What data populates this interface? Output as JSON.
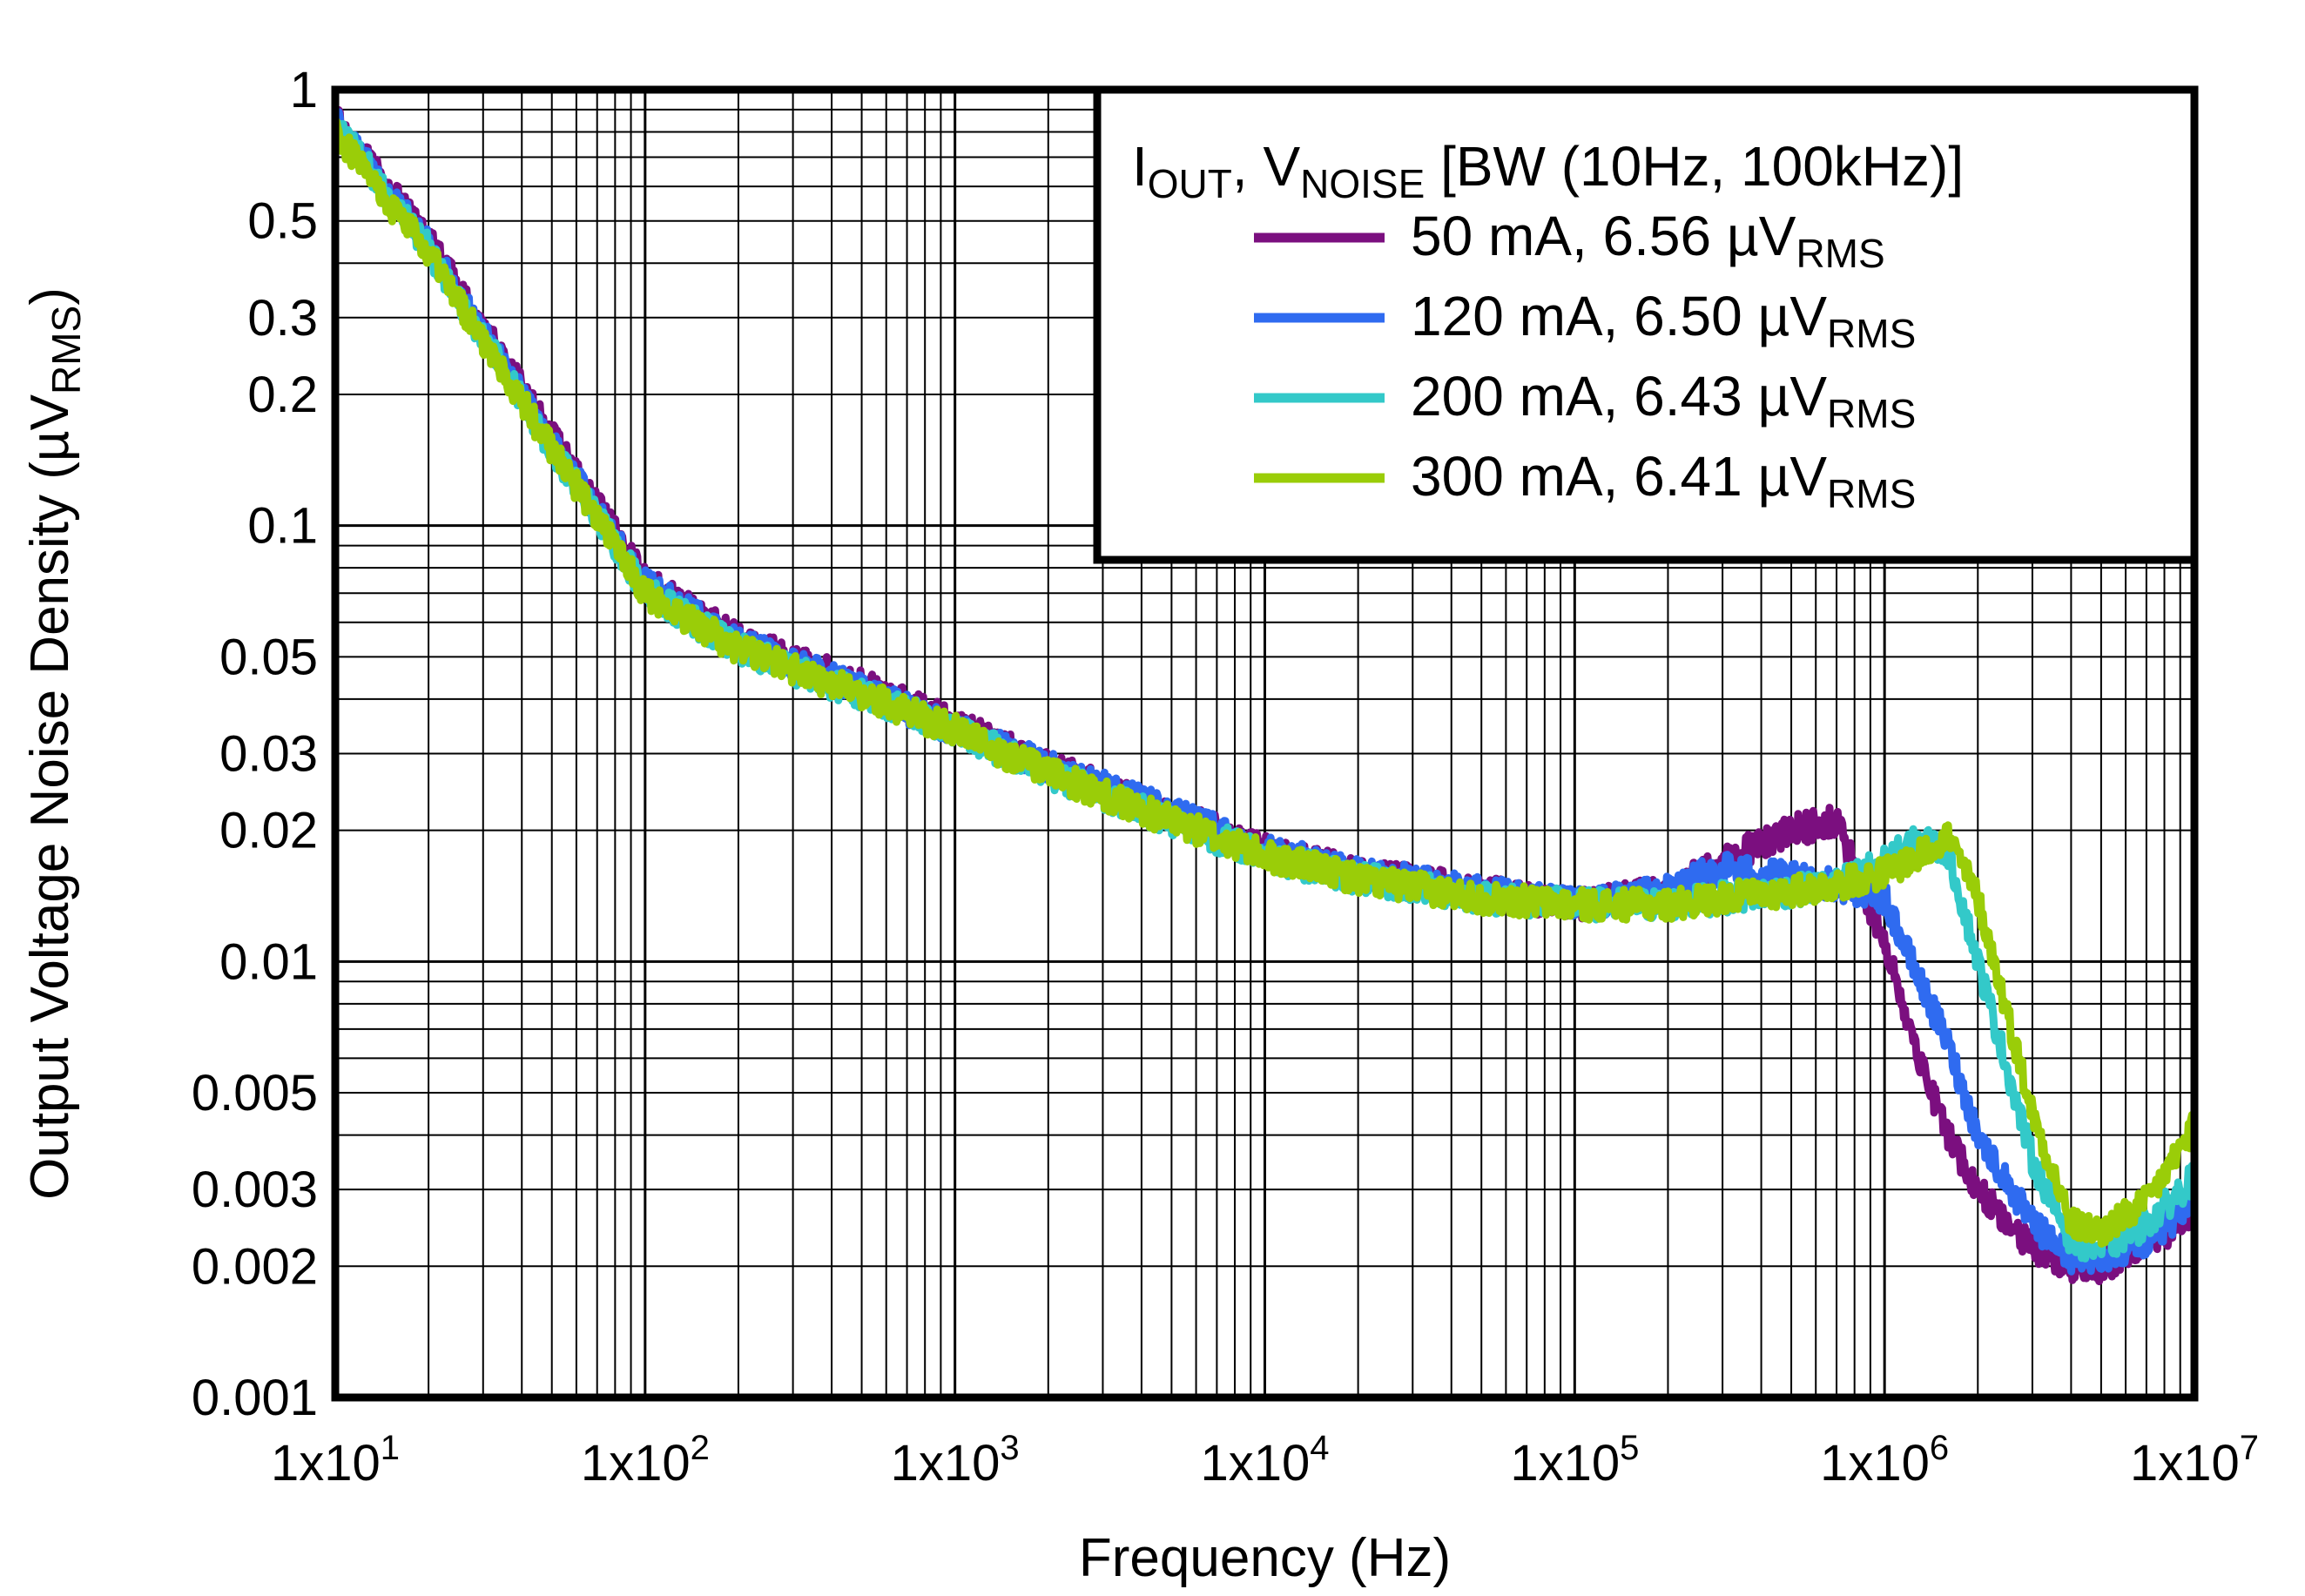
{
  "chart_data": {
    "type": "line",
    "title": "",
    "xlabel": "Frequency (Hz)",
    "ylabel": {
      "main": "Output Voltage Noise Density (µV",
      "sub": "RMS",
      "close": ")"
    },
    "x_scale": "log",
    "y_scale": "log",
    "xlim": [
      10,
      10000000
    ],
    "ylim": [
      0.001,
      1
    ],
    "x_tick_labels": [
      {
        "value": 10,
        "base": "1x10",
        "exp": "1"
      },
      {
        "value": 100,
        "base": "1x10",
        "exp": "2"
      },
      {
        "value": 1000,
        "base": "1x10",
        "exp": "3"
      },
      {
        "value": 10000,
        "base": "1x10",
        "exp": "4"
      },
      {
        "value": 100000,
        "base": "1x10",
        "exp": "5"
      },
      {
        "value": 1000000,
        "base": "1x10",
        "exp": "6"
      },
      {
        "value": 10000000,
        "base": "1x10",
        "exp": "7"
      }
    ],
    "y_tick_labels": [
      {
        "value": 1,
        "label": "1"
      },
      {
        "value": 0.5,
        "label": "0.5"
      },
      {
        "value": 0.3,
        "label": "0.3"
      },
      {
        "value": 0.2,
        "label": "0.2"
      },
      {
        "value": 0.1,
        "label": "0.1"
      },
      {
        "value": 0.05,
        "label": "0.05"
      },
      {
        "value": 0.03,
        "label": "0.03"
      },
      {
        "value": 0.02,
        "label": "0.02"
      },
      {
        "value": 0.01,
        "label": "0.01"
      },
      {
        "value": 0.005,
        "label": "0.005"
      },
      {
        "value": 0.003,
        "label": "0.003"
      },
      {
        "value": 0.002,
        "label": "0.002"
      },
      {
        "value": 0.001,
        "label": "0.001"
      }
    ],
    "grid": true,
    "legend": {
      "placement": "top-right",
      "header": {
        "p1": "I",
        "s1": "OUT",
        "p2": ", V",
        "s2": "NOISE",
        "p3": " [BW (10Hz, 100kHz)]"
      }
    },
    "series": [
      {
        "name": {
          "main": "50 mA, 6.56 µV",
          "sub": "RMS"
        },
        "color": "#7B0F7F",
        "x": [
          10,
          20,
          50,
          100,
          200,
          500,
          1000,
          2000,
          5000,
          10000,
          20000,
          50000,
          100000,
          200000,
          300000,
          500000,
          700000,
          1000000,
          1300000,
          1600000,
          2000000,
          3000000,
          4000000,
          5000000,
          7000000,
          10000000
        ],
        "y": [
          0.85,
          0.45,
          0.16,
          0.075,
          0.055,
          0.043,
          0.035,
          0.028,
          0.022,
          0.018,
          0.016,
          0.0145,
          0.0135,
          0.0145,
          0.017,
          0.02,
          0.021,
          0.011,
          0.006,
          0.004,
          0.003,
          0.0022,
          0.002,
          0.002,
          0.0022,
          0.0027
        ]
      },
      {
        "name": {
          "main": "120 mA, 6.50 µV",
          "sub": "RMS"
        },
        "color": "#2F6BF0",
        "x": [
          10,
          20,
          50,
          100,
          200,
          500,
          1000,
          2000,
          5000,
          10000,
          20000,
          50000,
          100000,
          200000,
          300000,
          500000,
          700000,
          1000000,
          1300000,
          1600000,
          2000000,
          3000000,
          4000000,
          5000000,
          7000000,
          10000000
        ],
        "y": [
          0.84,
          0.44,
          0.155,
          0.073,
          0.054,
          0.042,
          0.034,
          0.028,
          0.022,
          0.018,
          0.016,
          0.0145,
          0.0135,
          0.0145,
          0.0165,
          0.0155,
          0.015,
          0.014,
          0.009,
          0.0065,
          0.004,
          0.0025,
          0.0021,
          0.0021,
          0.0023,
          0.0028
        ]
      },
      {
        "name": {
          "main": "200 mA, 6.43 µV",
          "sub": "RMS"
        },
        "color": "#33C9C9",
        "x": [
          10,
          20,
          50,
          100,
          200,
          500,
          1000,
          2000,
          5000,
          10000,
          20000,
          50000,
          100000,
          200000,
          300000,
          500000,
          700000,
          1000000,
          1300000,
          1600000,
          2000000,
          3000000,
          4000000,
          5000000,
          7000000,
          10000000
        ],
        "y": [
          0.83,
          0.43,
          0.15,
          0.071,
          0.052,
          0.041,
          0.034,
          0.027,
          0.021,
          0.0175,
          0.0155,
          0.014,
          0.0135,
          0.0135,
          0.014,
          0.0145,
          0.015,
          0.017,
          0.019,
          0.018,
          0.01,
          0.0035,
          0.0023,
          0.0022,
          0.0025,
          0.0032
        ]
      },
      {
        "name": {
          "main": "300 mA, 6.41 µV",
          "sub": "RMS"
        },
        "color": "#9ACD08",
        "x": [
          10,
          20,
          50,
          100,
          200,
          500,
          1000,
          2000,
          5000,
          10000,
          20000,
          50000,
          100000,
          200000,
          300000,
          500000,
          700000,
          1000000,
          1300000,
          1600000,
          2000000,
          3000000,
          4000000,
          5000000,
          7000000,
          10000000
        ],
        "y": [
          0.8,
          0.42,
          0.15,
          0.07,
          0.052,
          0.041,
          0.034,
          0.027,
          0.021,
          0.0175,
          0.0155,
          0.014,
          0.0135,
          0.0135,
          0.014,
          0.0145,
          0.015,
          0.016,
          0.0175,
          0.0195,
          0.014,
          0.0045,
          0.0025,
          0.0024,
          0.0028,
          0.0042
        ]
      }
    ]
  }
}
